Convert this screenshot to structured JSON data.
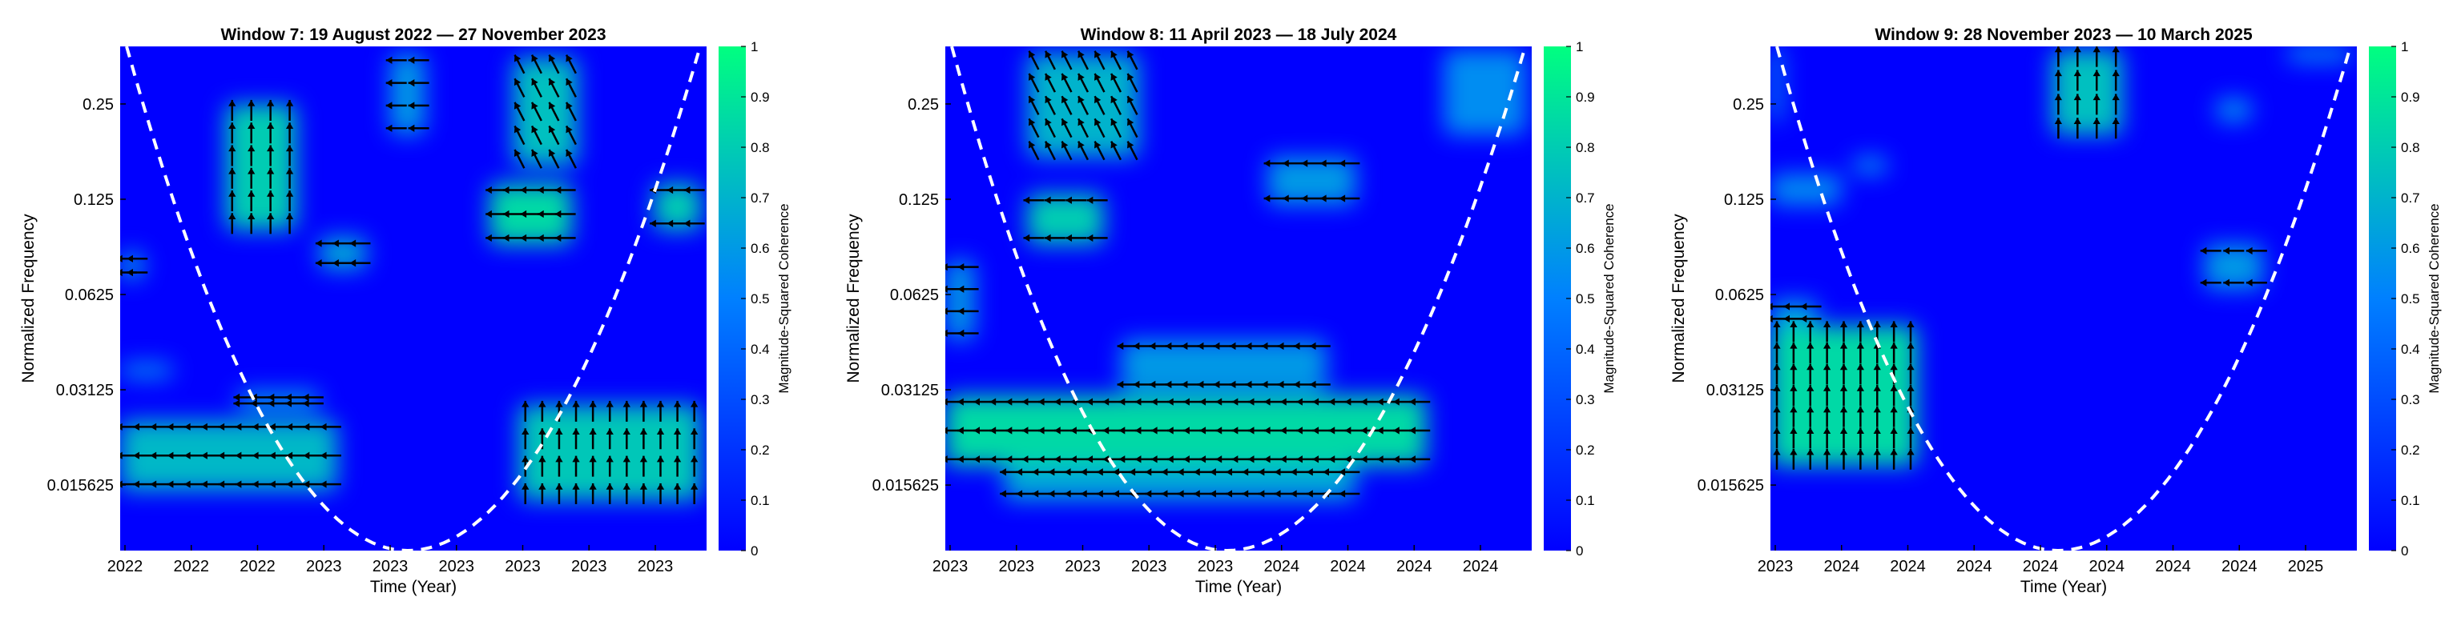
{
  "colors": {
    "low": "#0000ff",
    "mid": "#0080ff",
    "high": "#00ff80",
    "cone": "#ffffff",
    "arrow": "#000000"
  },
  "chart_data": [
    {
      "type": "heatmap",
      "title": "Window 7: 19 August 2022 — 27 November 2023",
      "xlabel": "Time (Year)",
      "ylabel": "Normalized Frequency",
      "colorbar_label": "Magnitude-Squared Coherence",
      "colorbar_ticks": [
        "0",
        "0.1",
        "0.2",
        "0.3",
        "0.4",
        "0.5",
        "0.6",
        "0.7",
        "0.8",
        "0.9",
        "1"
      ],
      "zlim": [
        0,
        1
      ],
      "x_tick_labels": [
        "2022",
        "2022",
        "2022",
        "2023",
        "2023",
        "2023",
        "2023",
        "2023",
        "2023"
      ],
      "y_tick_labels": [
        "0.25",
        "0.125",
        "0.0625",
        "0.03125",
        "0.015625"
      ],
      "y_scale": "log2",
      "ylim": [
        0.0097,
        0.38
      ],
      "x_range_fraction": [
        0,
        1
      ],
      "cone_apex": 0.49,
      "cone_y_top": 0.38,
      "high_coherence_regions": [
        {
          "t": [
            0.18,
            0.3
          ],
          "f": [
            0.1,
            0.25
          ],
          "value": 0.8
        },
        {
          "t": [
            0.34,
            0.42
          ],
          "f": [
            0.075,
            0.095
          ],
          "value": 0.65
        },
        {
          "t": [
            0.63,
            0.77
          ],
          "f": [
            0.09,
            0.14
          ],
          "value": 0.85
        },
        {
          "t": [
            0.67,
            0.78
          ],
          "f": [
            0.16,
            0.35
          ],
          "value": 0.75
        },
        {
          "t": [
            0.46,
            0.52
          ],
          "f": [
            0.2,
            0.36
          ],
          "value": 0.6
        },
        {
          "t": [
            0.91,
            0.99
          ],
          "f": [
            0.1,
            0.14
          ],
          "value": 0.8
        },
        {
          "t": [
            0.0,
            0.04
          ],
          "f": [
            0.07,
            0.085
          ],
          "value": 0.6
        },
        {
          "t": [
            0.0,
            0.09
          ],
          "f": [
            0.034,
            0.038
          ],
          "value": 0.55
        },
        {
          "t": [
            0.0,
            0.37
          ],
          "f": [
            0.015,
            0.025
          ],
          "value": 0.72
        },
        {
          "t": [
            0.2,
            0.34
          ],
          "f": [
            0.027,
            0.031
          ],
          "value": 0.6
        },
        {
          "t": [
            0.68,
            0.99
          ],
          "f": [
            0.014,
            0.028
          ],
          "value": 0.78
        }
      ]
    },
    {
      "type": "heatmap",
      "title": "Window 8: 11 April 2023 — 18 July 2024",
      "xlabel": "Time (Year)",
      "ylabel": "Normalized Frequency",
      "colorbar_label": "Magnitude-Squared Coherence",
      "colorbar_ticks": [
        "0",
        "0.1",
        "0.2",
        "0.3",
        "0.4",
        "0.5",
        "0.6",
        "0.7",
        "0.8",
        "0.9",
        "1"
      ],
      "zlim": [
        0,
        1
      ],
      "x_tick_labels": [
        "2023",
        "2023",
        "2023",
        "2023",
        "2023",
        "2024",
        "2024",
        "2024",
        "2024"
      ],
      "y_tick_labels": [
        "0.25",
        "0.125",
        "0.0625",
        "0.03125",
        "0.015625"
      ],
      "y_scale": "log2",
      "ylim": [
        0.0097,
        0.38
      ],
      "x_range_fraction": [
        0,
        1
      ],
      "cone_apex": 0.48,
      "cone_y_top": 0.38,
      "high_coherence_regions": [
        {
          "t": [
            0.14,
            0.27
          ],
          "f": [
            0.09,
            0.13
          ],
          "value": 0.8
        },
        {
          "t": [
            0.14,
            0.33
          ],
          "f": [
            0.17,
            0.36
          ],
          "value": 0.7
        },
        {
          "t": [
            0.0,
            0.05
          ],
          "f": [
            0.045,
            0.08
          ],
          "value": 0.6
        },
        {
          "t": [
            0.0,
            0.82
          ],
          "f": [
            0.018,
            0.03
          ],
          "value": 0.85
        },
        {
          "t": [
            0.1,
            0.7
          ],
          "f": [
            0.014,
            0.018
          ],
          "value": 0.65
        },
        {
          "t": [
            0.3,
            0.65
          ],
          "f": [
            0.031,
            0.045
          ],
          "value": 0.6
        },
        {
          "t": [
            0.55,
            0.7
          ],
          "f": [
            0.12,
            0.17
          ],
          "value": 0.6
        },
        {
          "t": [
            0.85,
            0.99
          ],
          "f": [
            0.2,
            0.37
          ],
          "value": 0.55
        }
      ]
    },
    {
      "type": "heatmap",
      "title": "Window 9: 28 November 2023 — 10 March 2025",
      "xlabel": "Time (Year)",
      "ylabel": "Normalized Frequency",
      "colorbar_label": "Magnitude-Squared Coherence",
      "colorbar_ticks": [
        "0",
        "0.1",
        "0.2",
        "0.3",
        "0.4",
        "0.5",
        "0.6",
        "0.7",
        "0.8",
        "0.9",
        "1"
      ],
      "zlim": [
        0,
        1
      ],
      "x_tick_labels": [
        "2023",
        "2024",
        "2024",
        "2024",
        "2024",
        "2024",
        "2024",
        "2024",
        "2025"
      ],
      "y_tick_labels": [
        "0.25",
        "0.125",
        "0.0625",
        "0.03125",
        "0.015625"
      ],
      "y_scale": "log2",
      "ylim": [
        0.0097,
        0.38
      ],
      "x_range_fraction": [
        0,
        1
      ],
      "cone_apex": 0.49,
      "cone_y_top": 0.38,
      "high_coherence_regions": [
        {
          "t": [
            0.0,
            0.25
          ],
          "f": [
            0.018,
            0.05
          ],
          "value": 0.85
        },
        {
          "t": [
            0.0,
            0.08
          ],
          "f": [
            0.05,
            0.06
          ],
          "value": 0.6
        },
        {
          "t": [
            0.0,
            0.12
          ],
          "f": [
            0.12,
            0.15
          ],
          "value": 0.55
        },
        {
          "t": [
            0.14,
            0.2
          ],
          "f": [
            0.15,
            0.17
          ],
          "value": 0.55
        },
        {
          "t": [
            0.48,
            0.6
          ],
          "f": [
            0.2,
            0.37
          ],
          "value": 0.75
        },
        {
          "t": [
            0.74,
            0.84
          ],
          "f": [
            0.065,
            0.09
          ],
          "value": 0.6
        },
        {
          "t": [
            0.76,
            0.82
          ],
          "f": [
            0.22,
            0.26
          ],
          "value": 0.55
        },
        {
          "t": [
            0.88,
            0.99
          ],
          "f": [
            0.34,
            0.38
          ],
          "value": 0.55
        },
        {
          "t": [
            0.0,
            0.02
          ],
          "f": [
            0.22,
            0.38
          ],
          "value": 0.55
        }
      ]
    }
  ]
}
